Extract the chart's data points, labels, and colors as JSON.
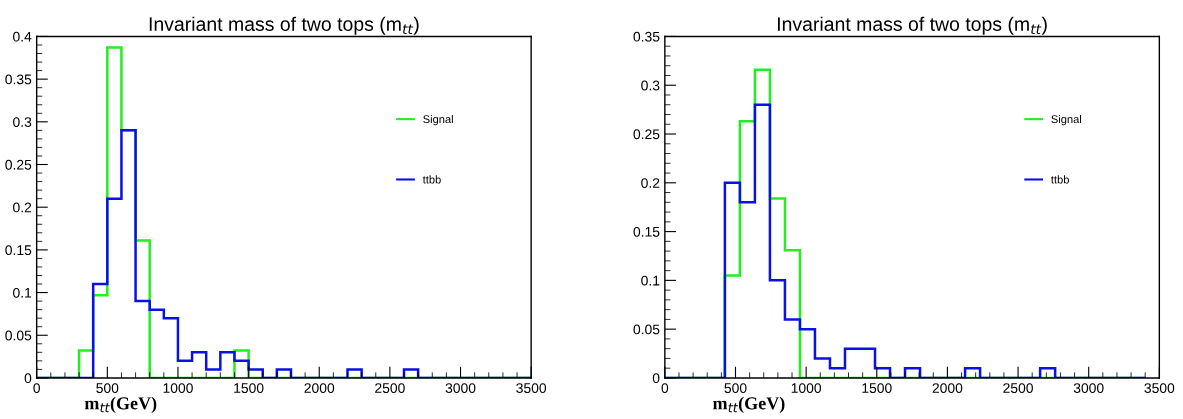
{
  "chart_data": [
    {
      "type": "histogram",
      "title": "Invariant mass of two tops (m$_{tt}$)",
      "xlabel": "m$_{tt}$(GeV)",
      "bins": [
        0,
        100,
        200,
        300,
        400,
        500,
        600,
        700,
        800,
        900,
        1000,
        1100,
        1200,
        1300,
        1400,
        1500,
        1600,
        1700,
        1800,
        1900,
        2000,
        2100,
        2200,
        2300,
        2400,
        2500,
        2600,
        2700,
        2800,
        2900,
        3000,
        3100,
        3200,
        3300,
        3400,
        3500
      ],
      "series": [
        {
          "name": "Signal",
          "color": "#22ee22",
          "values": [
            0,
            0,
            0,
            0.032,
            0.097,
            0.387,
            0.29,
            0.161,
            0,
            0,
            0,
            0,
            0,
            0,
            0.032,
            0,
            0,
            0,
            0,
            0,
            0,
            0,
            0,
            0,
            0,
            0,
            0,
            0,
            0,
            0,
            0,
            0,
            0,
            0,
            0
          ]
        },
        {
          "name": "ttbb",
          "color": "#0a10e8",
          "values": [
            0,
            0,
            0,
            0,
            0.11,
            0.21,
            0.29,
            0.09,
            0.08,
            0.07,
            0.02,
            0.03,
            0.01,
            0.03,
            0.02,
            0.01,
            0,
            0.01,
            0,
            0,
            0,
            0,
            0.01,
            0,
            0,
            0,
            0.01,
            0,
            0,
            0,
            0,
            0,
            0,
            0,
            0
          ]
        }
      ],
      "xlim": [
        0,
        3500
      ],
      "xticks": [
        0,
        500,
        1000,
        1500,
        2000,
        2500,
        3000,
        3500
      ],
      "ylim": [
        0,
        0.4
      ],
      "yticks": [
        0,
        0.05,
        0.1,
        0.15,
        0.2,
        0.25,
        0.3,
        0.35,
        0.4
      ],
      "legend": "top right"
    },
    {
      "type": "histogram",
      "title": "Invariant mass of two tops (m$_{tt}$)",
      "xlabel": "m$_{tt}$(GeV)",
      "bins": [
        0,
        106.25,
        212.5,
        318.75,
        425,
        531.25,
        637.5,
        743.75,
        850,
        956.25,
        1062.5,
        1168.75,
        1275,
        1381.25,
        1487.5,
        1593.75,
        1700,
        1806.25,
        1912.5,
        2018.75,
        2125,
        2231.25,
        2337.5,
        2443.75,
        2550,
        2656.25,
        2762.5,
        2868.75,
        2975,
        3081.25,
        3187.5,
        3293.75,
        3400
      ],
      "series": [
        {
          "name": "Signal",
          "color": "#22ee22",
          "values": [
            0,
            0,
            0,
            0,
            0.105,
            0.263,
            0.316,
            0.184,
            0.131,
            0,
            0,
            0,
            0,
            0,
            0,
            0,
            0,
            0,
            0,
            0,
            0,
            0,
            0,
            0,
            0,
            0,
            0,
            0,
            0,
            0,
            0,
            0
          ]
        },
        {
          "name": "ttbb",
          "color": "#0a10e8",
          "values": [
            0,
            0,
            0,
            0,
            0.2,
            0.18,
            0.28,
            0.1,
            0.06,
            0.05,
            0.02,
            0.01,
            0.03,
            0.03,
            0.01,
            0,
            0.01,
            0,
            0,
            0,
            0.01,
            0,
            0,
            0,
            0,
            0.01,
            0,
            0,
            0,
            0,
            0,
            0
          ]
        }
      ],
      "xlim": [
        0,
        3500
      ],
      "xticks": [
        0,
        500,
        1000,
        1500,
        2000,
        2500,
        3000,
        3500
      ],
      "ylim": [
        0,
        0.35
      ],
      "yticks": [
        0,
        0.05,
        0.1,
        0.15,
        0.2,
        0.25,
        0.3,
        0.35
      ],
      "legend": "top right"
    }
  ]
}
